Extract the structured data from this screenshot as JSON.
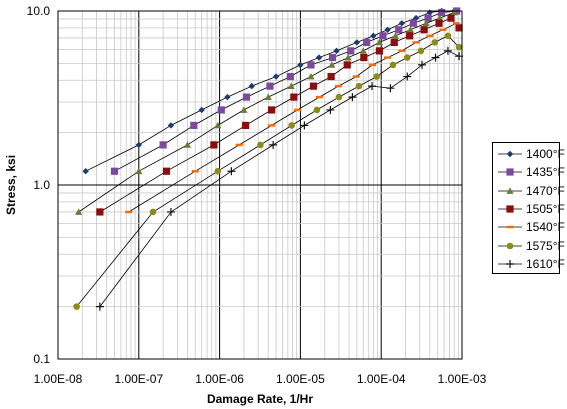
{
  "chart_data": {
    "type": "line",
    "xlabel": "Damage Rate, 1/Hr",
    "ylabel": "Stress, ksi",
    "x_scale": "log",
    "y_scale": "log",
    "xlim": [
      1e-08,
      0.001
    ],
    "ylim": [
      0.1,
      10
    ],
    "x_ticks": [
      1e-08,
      1e-07,
      1e-06,
      1e-05,
      0.0001,
      0.001
    ],
    "x_tick_labels": [
      "1.00E-08",
      "1.00E-07",
      "1.00E-06",
      "1.00E-05",
      "1.00E-04",
      "1.00E-03"
    ],
    "y_ticks": [
      0.1,
      1,
      10
    ],
    "y_tick_labels": [
      "0.1",
      "1.0",
      "10.0"
    ],
    "grid": true,
    "legend_position": "right",
    "series": [
      {
        "name": "1400°F",
        "color": "#1f3a6e",
        "marker": "diamond",
        "points": [
          [
            2.2e-08,
            1.2
          ],
          [
            1e-07,
            1.7
          ],
          [
            2.5e-07,
            2.2
          ],
          [
            6e-07,
            2.7
          ],
          [
            1.25e-06,
            3.2
          ],
          [
            2.5e-06,
            3.7
          ],
          [
            5e-06,
            4.2
          ],
          [
            1e-05,
            4.9
          ],
          [
            1.7e-05,
            5.4
          ],
          [
            2.8e-05,
            5.9
          ],
          [
            5e-05,
            6.6
          ],
          [
            8e-05,
            7.2
          ],
          [
            0.00012,
            7.8
          ],
          [
            0.00018,
            8.5
          ],
          [
            0.00027,
            9.1
          ],
          [
            0.0004,
            9.8
          ],
          [
            0.00056,
            10
          ],
          [
            0.0008,
            10
          ]
        ]
      },
      {
        "name": "1435°F",
        "color": "#7b4a9e",
        "marker": "square",
        "points": [
          [
            5e-08,
            1.2
          ],
          [
            2e-07,
            1.7
          ],
          [
            4.8e-07,
            2.2
          ],
          [
            1.05e-06,
            2.7
          ],
          [
            2.15e-06,
            3.2
          ],
          [
            4.2e-06,
            3.7
          ],
          [
            7.5e-06,
            4.2
          ],
          [
            1.35e-05,
            4.9
          ],
          [
            2.5e-05,
            5.4
          ],
          [
            4.2e-05,
            5.9
          ],
          [
            6.6e-05,
            6.6
          ],
          [
            0.000105,
            7.2
          ],
          [
            0.000165,
            7.8
          ],
          [
            0.00025,
            8.5
          ],
          [
            0.00038,
            9.1
          ],
          [
            0.00056,
            9.8
          ],
          [
            0.00086,
            10
          ]
        ]
      },
      {
        "name": "1470°F",
        "color": "#6b7a36",
        "marker": "triangle",
        "points": [
          [
            1.8e-08,
            0.7
          ],
          [
            1e-07,
            1.2
          ],
          [
            4e-07,
            1.7
          ],
          [
            9.5e-07,
            2.2
          ],
          [
            2e-06,
            2.7
          ],
          [
            4e-06,
            3.2
          ],
          [
            7.7e-06,
            3.7
          ],
          [
            1.35e-05,
            4.2
          ],
          [
            2.45e-05,
            4.9
          ],
          [
            3.9e-05,
            5.4
          ],
          [
            6e-05,
            5.9
          ],
          [
            9.5e-05,
            6.6
          ],
          [
            0.00015,
            7.2
          ],
          [
            0.00023,
            7.8
          ],
          [
            0.00036,
            8.5
          ],
          [
            0.00053,
            9.1
          ],
          [
            0.0008,
            9.8
          ]
        ]
      },
      {
        "name": "1505°F",
        "color": "#8b0d0d",
        "marker": "square",
        "points": [
          [
            3.3e-08,
            0.7
          ],
          [
            2.2e-07,
            1.2
          ],
          [
            8.5e-07,
            1.7
          ],
          [
            2.1e-06,
            2.2
          ],
          [
            4.4e-06,
            2.7
          ],
          [
            8.3e-06,
            3.2
          ],
          [
            1.45e-05,
            3.7
          ],
          [
            2.4e-05,
            4.2
          ],
          [
            3.8e-05,
            4.9
          ],
          [
            6.1e-05,
            5.4
          ],
          [
            9.5e-05,
            5.9
          ],
          [
            0.000145,
            6.6
          ],
          [
            0.000225,
            7.2
          ],
          [
            0.00034,
            7.8
          ],
          [
            0.00052,
            8.5
          ],
          [
            0.00073,
            9.1
          ],
          [
            0.00092,
            8
          ]
        ]
      },
      {
        "name": "1540°F",
        "color": "#ff6a00",
        "marker": "dash",
        "points": [
          [
            7.5e-08,
            0.7
          ],
          [
            5e-07,
            1.2
          ],
          [
            1.75e-06,
            1.7
          ],
          [
            4.4e-06,
            2.2
          ],
          [
            9.2e-06,
            2.7
          ],
          [
            1.72e-05,
            3.2
          ],
          [
            2.95e-05,
            3.7
          ],
          [
            4.9e-05,
            4.2
          ],
          [
            7.8e-05,
            4.9
          ],
          [
            0.00012,
            5.4
          ],
          [
            0.00018,
            5.9
          ],
          [
            0.00027,
            6.6
          ],
          [
            0.0004,
            7.2
          ],
          [
            0.00058,
            7.8
          ],
          [
            0.00085,
            8.5
          ]
        ]
      },
      {
        "name": "1575°F",
        "color": "#8c8c1a",
        "marker": "circle",
        "points": [
          [
            1.7e-08,
            0.2
          ],
          [
            1.5e-07,
            0.7
          ],
          [
            9.5e-07,
            1.2
          ],
          [
            3.2e-06,
            1.7
          ],
          [
            7.8e-06,
            2.2
          ],
          [
            1.6e-05,
            2.7
          ],
          [
            3e-05,
            3.2
          ],
          [
            5.3e-05,
            3.7
          ],
          [
            8.8e-05,
            4.2
          ],
          [
            0.00014,
            4.9
          ],
          [
            0.00021,
            5.4
          ],
          [
            0.00031,
            5.9
          ],
          [
            0.00046,
            6.6
          ],
          [
            0.00067,
            7.2
          ],
          [
            0.00092,
            6.2
          ]
        ]
      },
      {
        "name": "1610°F",
        "color": "#111111",
        "marker": "plus",
        "points": [
          [
            3.3e-08,
            0.2
          ],
          [
            2.5e-07,
            0.7
          ],
          [
            1.4e-06,
            1.2
          ],
          [
            4.6e-06,
            1.7
          ],
          [
            1.12e-05,
            2.2
          ],
          [
            2.35e-05,
            2.7
          ],
          [
            4.4e-05,
            3.2
          ],
          [
            7.7e-05,
            3.7
          ],
          [
            0.00013,
            3.6
          ],
          [
            0.00021,
            4.2
          ],
          [
            0.00032,
            4.9
          ],
          [
            0.00047,
            5.4
          ],
          [
            0.00067,
            5.9
          ],
          [
            0.00092,
            5.5
          ]
        ]
      }
    ]
  }
}
